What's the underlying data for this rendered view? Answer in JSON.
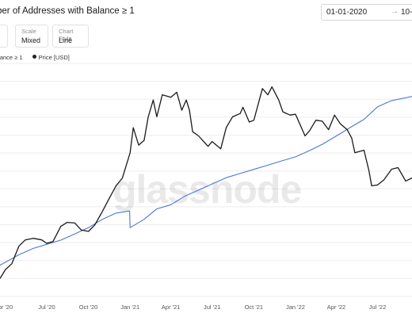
{
  "header": {
    "title": "ber of Addresses with Balance ≥ 1",
    "date_from": "01-01-2020",
    "date_arrow": "→",
    "date_to": "10-1"
  },
  "controls": {
    "scale_label": "Scale",
    "scale_value": "Mixed",
    "style_label": "Chart Style",
    "style_value": "Line"
  },
  "legend": {
    "addresses_label": "alance ≥ 1",
    "price_label": "Price [USD]"
  },
  "watermark": "glassnode",
  "colors": {
    "addresses": "#4a78d6",
    "price": "#1a1a1a",
    "grid": "#eeeeee"
  },
  "chart_data": {
    "type": "line",
    "x_tick_labels": [
      "pr '20",
      "Jul '20",
      "Oct '20",
      "Jan '21",
      "Apr '21",
      "Jul '21",
      "Oct '21",
      "Jan '22",
      "Apr '22",
      "Jul '22"
    ],
    "x_ticks": [
      "2020-04-01",
      "2020-07-01",
      "2020-10-01",
      "2021-01-01",
      "2021-04-01",
      "2021-07-01",
      "2021-10-01",
      "2022-01-01",
      "2022-04-01",
      "2022-07-01"
    ],
    "xlim": [
      "2020-03-20",
      "2022-09-15"
    ],
    "grid": true,
    "legend_position": "top-left",
    "series": [
      {
        "name": "Price [USD]",
        "color": "#1a1a1a",
        "x": [
          "2020-03-20",
          "2020-04-01",
          "2020-04-15",
          "2020-05-01",
          "2020-05-15",
          "2020-06-01",
          "2020-06-20",
          "2020-07-01",
          "2020-07-15",
          "2020-08-01",
          "2020-08-15",
          "2020-09-01",
          "2020-09-15",
          "2020-10-01",
          "2020-10-15",
          "2020-11-01",
          "2020-11-15",
          "2020-12-01",
          "2020-12-15",
          "2021-01-01",
          "2021-01-08",
          "2021-01-20",
          "2021-02-01",
          "2021-02-10",
          "2021-02-21",
          "2021-03-01",
          "2021-03-13",
          "2021-04-01",
          "2021-04-14",
          "2021-04-25",
          "2021-05-05",
          "2021-05-12",
          "2021-05-19",
          "2021-06-01",
          "2021-06-22",
          "2021-07-01",
          "2021-07-20",
          "2021-08-01",
          "2021-08-15",
          "2021-09-01",
          "2021-09-07",
          "2021-09-21",
          "2021-10-01",
          "2021-10-20",
          "2021-11-01",
          "2021-11-10",
          "2021-11-25",
          "2021-12-04",
          "2021-12-20",
          "2022-01-01",
          "2022-01-22",
          "2022-02-01",
          "2022-02-15",
          "2022-03-01",
          "2022-03-15",
          "2022-03-28",
          "2022-04-10",
          "2022-04-25",
          "2022-05-05",
          "2022-05-12",
          "2022-06-01",
          "2022-06-12",
          "2022-06-18",
          "2022-07-01",
          "2022-07-15",
          "2022-08-01",
          "2022-08-15",
          "2022-09-01",
          "2022-09-15"
        ],
        "values": [
          5800,
          6500,
          7000,
          8800,
          9500,
          9700,
          9500,
          9100,
          9300,
          11300,
          11900,
          11800,
          10800,
          10600,
          11500,
          13700,
          16000,
          19000,
          21000,
          29000,
          40000,
          32000,
          34000,
          46000,
          57000,
          46000,
          61000,
          59000,
          63000,
          50000,
          57000,
          50000,
          38000,
          36000,
          31500,
          33500,
          30500,
          40000,
          46000,
          48000,
          52000,
          43000,
          44000,
          66000,
          61000,
          67500,
          57000,
          49000,
          47000,
          47500,
          36000,
          38500,
          44000,
          43500,
          39000,
          47000,
          42000,
          39000,
          35000,
          29000,
          30000,
          23000,
          19000,
          19200,
          20500,
          23500,
          24000,
          20200,
          21000
        ]
      },
      {
        "name": "Addresses with Balance ≥ 1",
        "color": "#4a78d6",
        "x": [
          "2020-03-20",
          "2020-05-01",
          "2020-06-01",
          "2020-07-01",
          "2020-08-01",
          "2020-09-01",
          "2020-10-01",
          "2020-11-01",
          "2020-12-01",
          "2020-12-31",
          "2021-01-01",
          "2021-02-01",
          "2021-03-01",
          "2021-04-01",
          "2021-05-01",
          "2021-06-01",
          "2021-07-01",
          "2021-08-01",
          "2021-09-01",
          "2021-10-01",
          "2021-11-01",
          "2021-12-01",
          "2022-01-01",
          "2022-02-01",
          "2022-03-01",
          "2022-04-01",
          "2022-05-01",
          "2022-06-01",
          "2022-07-01",
          "2022-08-01",
          "2022-09-15"
        ],
        "values": [
          790000,
          795000,
          798000,
          800000,
          802000,
          805000,
          808000,
          812000,
          815000,
          816000,
          808000,
          812000,
          817000,
          819000,
          823000,
          826000,
          829000,
          832000,
          834000,
          836000,
          838000,
          840000,
          842000,
          845000,
          848000,
          852000,
          856000,
          860000,
          866000,
          869000,
          871000
        ]
      }
    ]
  }
}
